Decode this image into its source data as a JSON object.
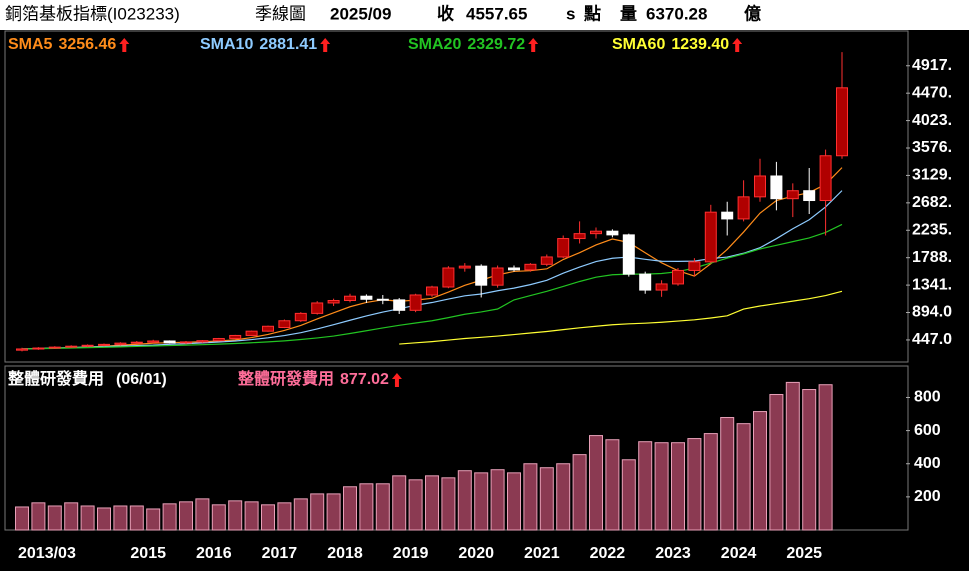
{
  "header": {
    "title": "銅箔基板指標(I023233)",
    "period": "季線圖",
    "date": "2025/09",
    "close_label": "收",
    "close": "4557.65",
    "flag": "s",
    "close_unit": "點",
    "volume_label": "量",
    "volume": "6370.28",
    "volume_unit": "億"
  },
  "chart_data": [
    {
      "type": "candlestick",
      "categories": [
        "2013/03",
        null,
        null,
        null,
        null,
        null,
        null,
        null,
        "2015",
        null,
        null,
        null,
        "2016",
        null,
        null,
        null,
        "2017",
        null,
        null,
        null,
        "2018",
        null,
        null,
        null,
        "2019",
        null,
        null,
        null,
        "2020",
        null,
        null,
        null,
        "2021",
        null,
        null,
        null,
        "2022",
        null,
        null,
        null,
        "2023",
        null,
        null,
        null,
        "2024",
        null,
        null,
        null,
        "2025",
        null,
        null
      ],
      "open": [
        280,
        300,
        315,
        330,
        345,
        360,
        375,
        395,
        410,
        430,
        400,
        415,
        435,
        470,
        520,
        590,
        650,
        760,
        880,
        1050,
        1090,
        1160,
        1110,
        1100,
        930,
        1180,
        1310,
        1620,
        1650,
        1340,
        1620,
        1590,
        1680,
        1800,
        2100,
        2180,
        2220,
        2160,
        1520,
        1260,
        1360,
        1580,
        1720,
        2530,
        2420,
        2780,
        3120,
        2750,
        2880,
        2720,
        3450
      ],
      "high": [
        320,
        330,
        345,
        360,
        375,
        390,
        410,
        430,
        450,
        440,
        430,
        445,
        480,
        530,
        600,
        680,
        780,
        900,
        1080,
        1120,
        1200,
        1190,
        1180,
        1130,
        1200,
        1330,
        1650,
        1700,
        1680,
        1660,
        1660,
        1700,
        1840,
        2150,
        2380,
        2280,
        2250,
        2180,
        1560,
        1420,
        1620,
        1780,
        2650,
        2700,
        3050,
        3400,
        3350,
        3000,
        3250,
        3550,
        5140
      ],
      "low": [
        260,
        285,
        300,
        315,
        330,
        345,
        355,
        380,
        395,
        390,
        380,
        400,
        425,
        460,
        510,
        580,
        640,
        740,
        860,
        1000,
        1060,
        1050,
        1030,
        870,
        900,
        1150,
        1290,
        1560,
        1140,
        1300,
        1560,
        1560,
        1650,
        1780,
        2020,
        2100,
        2120,
        1480,
        1200,
        1150,
        1330,
        1480,
        1700,
        2150,
        2380,
        2700,
        2560,
        2450,
        2500,
        2150,
        3400
      ],
      "close": [
        300,
        315,
        330,
        345,
        360,
        375,
        395,
        410,
        430,
        400,
        415,
        435,
        470,
        520,
        590,
        670,
        760,
        880,
        1050,
        1090,
        1160,
        1110,
        1100,
        930,
        1180,
        1310,
        1620,
        1650,
        1340,
        1620,
        1590,
        1680,
        1800,
        2100,
        2180,
        2220,
        2160,
        1520,
        1260,
        1360,
        1580,
        1720,
        2530,
        2420,
        2780,
        3120,
        2750,
        2880,
        2720,
        3450,
        4557.65
      ],
      "up_color": "#b00000",
      "down_color": "#ffffff",
      "series": [
        {
          "name": "SMA5",
          "color": "#ff8c1a",
          "legend_value": "3256.46",
          "values": [
            300,
            308,
            315,
            323,
            330,
            345,
            361,
            377,
            394,
            402,
            410,
            418,
            430,
            448,
            486,
            537,
            602,
            684,
            790,
            890,
            988,
            1058,
            1102,
            1078,
            1096,
            1126,
            1228,
            1338,
            1420,
            1508,
            1564,
            1576,
            1606,
            1758,
            1870,
            1996,
            2092,
            2036,
            1868,
            1704,
            1576,
            1488,
            1690,
            1922,
            2206,
            2514,
            2720,
            2790,
            2850,
            2984,
            3256.46
          ]
        },
        {
          "name": "SMA10",
          "color": "#8ecbff",
          "legend_value": "2881.41",
          "values": [
            300,
            308,
            315,
            323,
            330,
            338,
            346,
            354,
            362,
            376,
            387,
            399,
            413,
            430,
            453,
            482,
            518,
            565,
            627,
            695,
            768,
            838,
            901,
            954,
            1013,
            1057,
            1114,
            1166,
            1196,
            1249,
            1292,
            1349,
            1419,
            1535,
            1635,
            1725,
            1779,
            1798,
            1762,
            1730,
            1728,
            1732,
            1774,
            1798,
            1860,
            1950,
            2098,
            2260,
            2406,
            2615,
            2881.41
          ]
        },
        {
          "name": "SMA20",
          "color": "#22c422",
          "legend_value": "2329.72",
          "values": [
            300,
            305,
            310,
            316,
            322,
            328,
            334,
            341,
            348,
            355,
            362,
            370,
            379,
            389,
            401,
            415,
            432,
            454,
            480,
            510,
            552,
            597,
            643,
            685,
            723,
            760,
            811,
            866,
            904,
            951,
            1100,
            1170,
            1240,
            1320,
            1400,
            1470,
            1510,
            1520,
            1520,
            1530,
            1560,
            1620,
            1700,
            1780,
            1850,
            1930,
            1990,
            2050,
            2110,
            2200,
            2329.72
          ]
        },
        {
          "name": "SMA60",
          "color": "#ffff33",
          "legend_value": "1239.40",
          "values": [
            null,
            null,
            null,
            null,
            null,
            null,
            null,
            null,
            null,
            null,
            null,
            null,
            null,
            null,
            null,
            null,
            null,
            null,
            null,
            null,
            null,
            null,
            null,
            380,
            400,
            420,
            445,
            470,
            490,
            510,
            535,
            560,
            585,
            615,
            645,
            670,
            695,
            710,
            720,
            735,
            755,
            775,
            805,
            840,
            950,
            1000,
            1040,
            1080,
            1120,
            1170,
            1239.4
          ]
        }
      ],
      "ylim": [
        120,
        5500
      ],
      "yticks": [
        {
          "value": 447,
          "label": "447.0"
        },
        {
          "value": 894,
          "label": "894.0"
        },
        {
          "value": 1341,
          "label": "1341."
        },
        {
          "value": 1788,
          "label": "1788."
        },
        {
          "value": 2235,
          "label": "2235."
        },
        {
          "value": 2682,
          "label": "2682."
        },
        {
          "value": 3129,
          "label": "3129."
        },
        {
          "value": 3576,
          "label": "3576."
        },
        {
          "value": 4023,
          "label": "4023."
        },
        {
          "value": 4470,
          "label": "4470."
        },
        {
          "value": 4917,
          "label": "4917."
        }
      ]
    },
    {
      "type": "bar",
      "title": "整體研發費用",
      "subtitle": "(06/01)",
      "series": [
        {
          "name": "整體研發費用",
          "color": "#8b3a52",
          "legend_value": "877.02",
          "values": [
            139,
            164,
            145,
            164,
            145,
            133,
            145,
            145,
            127,
            158,
            170,
            188,
            152,
            176,
            170,
            152,
            164,
            188,
            218,
            218,
            261,
            279,
            279,
            327,
            303,
            327,
            315,
            358,
            345,
            364,
            345,
            400,
            376,
            400,
            455,
            570,
            545,
            424,
            533,
            527,
            527,
            552,
            582,
            679,
            642,
            715,
            818,
            891,
            848,
            877.02,
            null
          ]
        }
      ],
      "ylim": [
        0,
        990
      ],
      "yticks": [
        200,
        400,
        600,
        800
      ]
    }
  ]
}
